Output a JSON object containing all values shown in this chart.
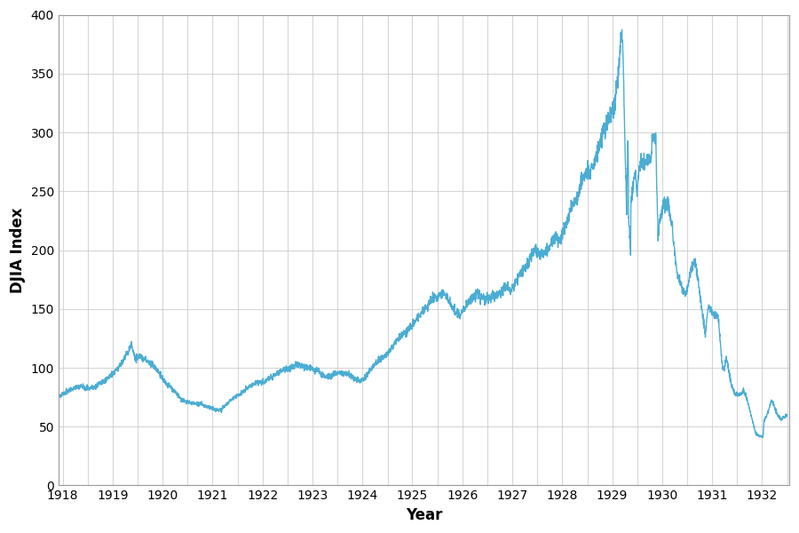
{
  "title": "",
  "xlabel": "Year",
  "ylabel": "DJIA Index",
  "line_color": "#4BADD4",
  "line_width": 1.0,
  "background_color": "#ffffff",
  "grid_color": "#cccccc",
  "ylim": [
    0,
    400
  ],
  "yticks": [
    0,
    50,
    100,
    150,
    200,
    250,
    300,
    350,
    400
  ],
  "fig_width": 9.0,
  "fig_height": 6.0,
  "key_points": [
    [
      1918,
      1,
      78.0
    ],
    [
      1918,
      2,
      76.5
    ],
    [
      1918,
      3,
      74.5
    ],
    [
      1918,
      4,
      74.0
    ],
    [
      1918,
      5,
      75.0
    ],
    [
      1918,
      6,
      76.5
    ],
    [
      1918,
      7,
      78.5
    ],
    [
      1918,
      8,
      80.5
    ],
    [
      1918,
      9,
      82.0
    ],
    [
      1918,
      10,
      83.5
    ],
    [
      1918,
      11,
      84.5
    ],
    [
      1918,
      12,
      82.5
    ],
    [
      1919,
      1,
      82.5
    ],
    [
      1919,
      2,
      83.5
    ],
    [
      1919,
      3,
      85.5
    ],
    [
      1919,
      4,
      87.5
    ],
    [
      1919,
      5,
      90.0
    ],
    [
      1919,
      6,
      93.0
    ],
    [
      1919,
      7,
      97.0
    ],
    [
      1919,
      8,
      100.5
    ],
    [
      1919,
      9,
      106.0
    ],
    [
      1919,
      10,
      112.0
    ],
    [
      1919,
      11,
      119.0
    ],
    [
      1919,
      12,
      108.0
    ],
    [
      1920,
      1,
      109.5
    ],
    [
      1920,
      2,
      108.0
    ],
    [
      1920,
      3,
      105.5
    ],
    [
      1920,
      4,
      103.0
    ],
    [
      1920,
      5,
      99.5
    ],
    [
      1920,
      6,
      94.0
    ],
    [
      1920,
      7,
      88.5
    ],
    [
      1920,
      8,
      85.0
    ],
    [
      1920,
      9,
      81.5
    ],
    [
      1920,
      10,
      78.0
    ],
    [
      1920,
      11,
      73.0
    ],
    [
      1920,
      12,
      71.0
    ],
    [
      1921,
      1,
      70.5
    ],
    [
      1921,
      2,
      70.0
    ],
    [
      1921,
      3,
      69.5
    ],
    [
      1921,
      4,
      68.5
    ],
    [
      1921,
      5,
      67.5
    ],
    [
      1921,
      6,
      66.5
    ],
    [
      1921,
      7,
      64.5
    ],
    [
      1921,
      8,
      63.5
    ],
    [
      1921,
      9,
      66.0
    ],
    [
      1921,
      10,
      69.5
    ],
    [
      1921,
      11,
      72.5
    ],
    [
      1921,
      12,
      76.0
    ],
    [
      1922,
      1,
      77.0
    ],
    [
      1922,
      2,
      80.0
    ],
    [
      1922,
      3,
      83.0
    ],
    [
      1922,
      4,
      85.0
    ],
    [
      1922,
      5,
      87.5
    ],
    [
      1922,
      6,
      87.5
    ],
    [
      1922,
      7,
      88.5
    ],
    [
      1922,
      8,
      90.5
    ],
    [
      1922,
      9,
      93.0
    ],
    [
      1922,
      10,
      95.0
    ],
    [
      1922,
      11,
      97.0
    ],
    [
      1922,
      12,
      99.0
    ],
    [
      1923,
      1,
      100.0
    ],
    [
      1923,
      2,
      101.5
    ],
    [
      1923,
      3,
      102.0
    ],
    [
      1923,
      4,
      102.0
    ],
    [
      1923,
      5,
      100.5
    ],
    [
      1923,
      6,
      99.5
    ],
    [
      1923,
      7,
      98.5
    ],
    [
      1923,
      8,
      97.0
    ],
    [
      1923,
      9,
      93.5
    ],
    [
      1923,
      10,
      92.5
    ],
    [
      1923,
      11,
      93.5
    ],
    [
      1923,
      12,
      95.5
    ],
    [
      1924,
      1,
      96.5
    ],
    [
      1924,
      2,
      95.5
    ],
    [
      1924,
      3,
      94.5
    ],
    [
      1924,
      4,
      93.0
    ],
    [
      1924,
      5,
      90.0
    ],
    [
      1924,
      6,
      89.0
    ],
    [
      1924,
      7,
      91.0
    ],
    [
      1924,
      8,
      96.5
    ],
    [
      1924,
      9,
      101.0
    ],
    [
      1924,
      10,
      104.5
    ],
    [
      1924,
      11,
      108.5
    ],
    [
      1924,
      12,
      111.0
    ],
    [
      1925,
      1,
      114.0
    ],
    [
      1925,
      2,
      120.0
    ],
    [
      1925,
      3,
      124.0
    ],
    [
      1925,
      4,
      129.0
    ],
    [
      1925,
      5,
      131.0
    ],
    [
      1925,
      6,
      135.0
    ],
    [
      1925,
      7,
      139.0
    ],
    [
      1925,
      8,
      143.5
    ],
    [
      1925,
      9,
      147.5
    ],
    [
      1925,
      10,
      152.0
    ],
    [
      1925,
      11,
      157.5
    ],
    [
      1925,
      12,
      160.0
    ],
    [
      1926,
      1,
      162.0
    ],
    [
      1926,
      2,
      163.5
    ],
    [
      1926,
      3,
      158.0
    ],
    [
      1926,
      4,
      152.0
    ],
    [
      1926,
      5,
      147.0
    ],
    [
      1926,
      6,
      145.0
    ],
    [
      1926,
      7,
      150.0
    ],
    [
      1926,
      8,
      156.0
    ],
    [
      1926,
      9,
      161.0
    ],
    [
      1926,
      10,
      163.0
    ],
    [
      1926,
      11,
      159.0
    ],
    [
      1926,
      12,
      158.0
    ],
    [
      1927,
      1,
      159.0
    ],
    [
      1927,
      2,
      161.0
    ],
    [
      1927,
      3,
      163.0
    ],
    [
      1927,
      4,
      165.0
    ],
    [
      1927,
      5,
      169.0
    ],
    [
      1927,
      6,
      166.0
    ],
    [
      1927,
      7,
      170.0
    ],
    [
      1927,
      8,
      176.0
    ],
    [
      1927,
      9,
      182.0
    ],
    [
      1927,
      10,
      187.0
    ],
    [
      1927,
      11,
      194.0
    ],
    [
      1927,
      12,
      200.0
    ],
    [
      1928,
      1,
      197.0
    ],
    [
      1928,
      2,
      196.0
    ],
    [
      1928,
      3,
      200.0
    ],
    [
      1928,
      4,
      207.0
    ],
    [
      1928,
      5,
      212.0
    ],
    [
      1928,
      6,
      208.0
    ],
    [
      1928,
      7,
      217.0
    ],
    [
      1928,
      8,
      228.0
    ],
    [
      1928,
      9,
      238.0
    ],
    [
      1928,
      10,
      243.0
    ],
    [
      1928,
      11,
      257.0
    ],
    [
      1928,
      12,
      263.0
    ],
    [
      1929,
      1,
      267.0
    ],
    [
      1929,
      2,
      272.0
    ],
    [
      1929,
      3,
      283.0
    ],
    [
      1929,
      4,
      297.0
    ],
    [
      1929,
      5,
      306.0
    ],
    [
      1929,
      6,
      312.0
    ],
    [
      1929,
      7,
      318.0
    ],
    [
      1929,
      8,
      350.0
    ],
    [
      1929,
      9,
      356.0
    ],
    [
      1929,
      9,
      381.0
    ],
    [
      1929,
      10,
      307.0
    ],
    [
      1929,
      10,
      230.0
    ],
    [
      1929,
      11,
      238.0
    ],
    [
      1929,
      12,
      267.0
    ],
    [
      1930,
      1,
      271.0
    ],
    [
      1930,
      2,
      272.0
    ],
    [
      1930,
      3,
      278.0
    ],
    [
      1930,
      4,
      280.0
    ],
    [
      1930,
      5,
      259.0
    ],
    [
      1930,
      5,
      295.0
    ],
    [
      1930,
      6,
      226.0
    ],
    [
      1930,
      7,
      240.0
    ],
    [
      1930,
      8,
      240.0
    ],
    [
      1930,
      9,
      215.0
    ],
    [
      1930,
      10,
      183.0
    ],
    [
      1930,
      11,
      172.0
    ],
    [
      1930,
      12,
      164.0
    ],
    [
      1931,
      1,
      178.0
    ],
    [
      1931,
      2,
      190.0
    ],
    [
      1931,
      3,
      179.0
    ],
    [
      1931,
      4,
      152.0
    ],
    [
      1931,
      5,
      128.0
    ],
    [
      1931,
      6,
      150.0
    ],
    [
      1931,
      7,
      145.0
    ],
    [
      1931,
      8,
      144.0
    ],
    [
      1931,
      9,
      100.0
    ],
    [
      1931,
      10,
      108.0
    ],
    [
      1931,
      11,
      88.0
    ],
    [
      1931,
      12,
      77.0
    ],
    [
      1932,
      1,
      76.0
    ],
    [
      1932,
      2,
      81.0
    ],
    [
      1932,
      3,
      73.0
    ],
    [
      1932,
      4,
      58.0
    ],
    [
      1932,
      5,
      44.0
    ],
    [
      1932,
      6,
      42.0
    ],
    [
      1932,
      7,
      54.0
    ],
    [
      1932,
      8,
      63.0
    ],
    [
      1932,
      9,
      71.0
    ],
    [
      1932,
      10,
      62.0
    ],
    [
      1932,
      11,
      56.0
    ],
    [
      1932,
      12,
      59.0
    ]
  ]
}
